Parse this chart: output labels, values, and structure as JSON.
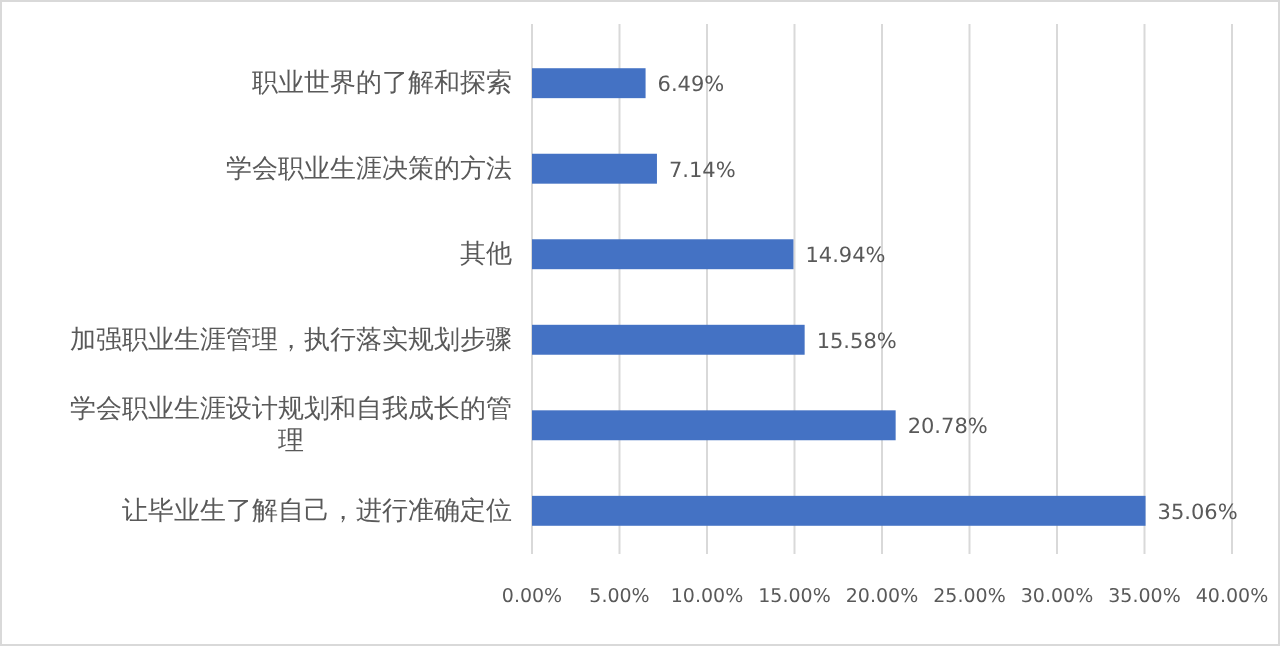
{
  "chart_data": {
    "type": "bar",
    "orientation": "horizontal",
    "categories": [
      "职业世界的了解和探索",
      "学会职业生涯决策的方法",
      "其他",
      "加强职业生涯管理，执行落实规划步骤",
      "学会职业生涯设计规划和自我成长的管理",
      "让毕业生了解自己，进行准确定位"
    ],
    "values": [
      6.49,
      7.14,
      14.94,
      15.58,
      20.78,
      35.06
    ],
    "value_labels": [
      "6.49%",
      "7.14%",
      "14.94%",
      "15.58%",
      "20.78%",
      "35.06%"
    ],
    "color": "#4472c4",
    "xlim": [
      0,
      40
    ],
    "xticks": [
      {
        "value": 0,
        "label": "0.00%"
      },
      {
        "value": 5,
        "label": "5.00%"
      },
      {
        "value": 10,
        "label": "10.00%"
      },
      {
        "value": 15,
        "label": "15.00%"
      },
      {
        "value": 20,
        "label": "20.00%"
      },
      {
        "value": 25,
        "label": "25.00%"
      },
      {
        "value": 30,
        "label": "30.00%"
      },
      {
        "value": 35,
        "label": "35.00%"
      },
      {
        "value": 40,
        "label": "40.00%"
      }
    ],
    "grid": "x"
  }
}
